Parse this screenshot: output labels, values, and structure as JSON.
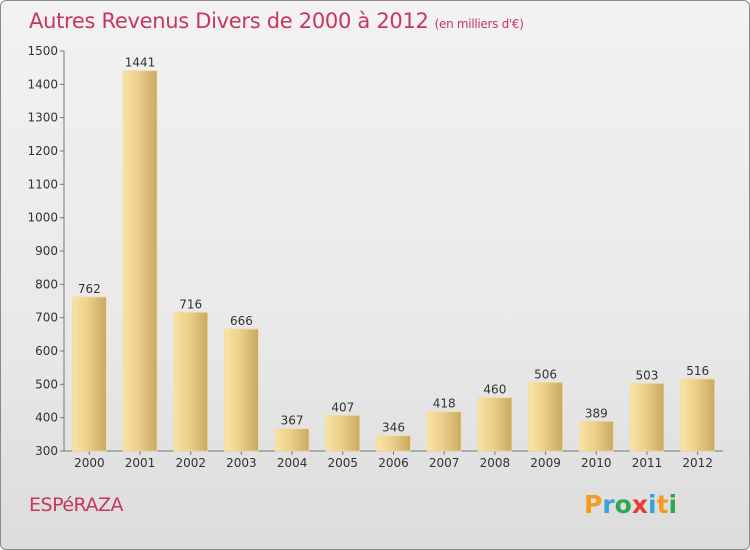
{
  "title": "Autres Revenus Divers de 2000 à 2012",
  "subtitle": "(en milliers d'€)",
  "commune": "ESPéRAZA",
  "logo": {
    "text": "Proxiti",
    "letter_colors": [
      "#f39c1f",
      "#3aa0d8",
      "#2fa84f",
      "#e53d2f",
      "#3aa0d8",
      "#f39c1f",
      "#2fa84f"
    ]
  },
  "colors": {
    "title": "#c8365e",
    "bar_light": "#f7df9a",
    "bar_dark": "#c6a55c"
  },
  "chart_data": {
    "type": "bar",
    "categories": [
      "2000",
      "2001",
      "2002",
      "2003",
      "2004",
      "2005",
      "2006",
      "2007",
      "2008",
      "2009",
      "2010",
      "2011",
      "2012"
    ],
    "values": [
      762,
      1441,
      716,
      666,
      367,
      407,
      346,
      418,
      460,
      506,
      389,
      503,
      516
    ],
    "ylim": [
      300,
      1500
    ],
    "yticks": [
      300,
      400,
      500,
      600,
      700,
      800,
      900,
      1000,
      1100,
      1200,
      1300,
      1400,
      1500
    ],
    "grid": false,
    "legend": "none"
  }
}
